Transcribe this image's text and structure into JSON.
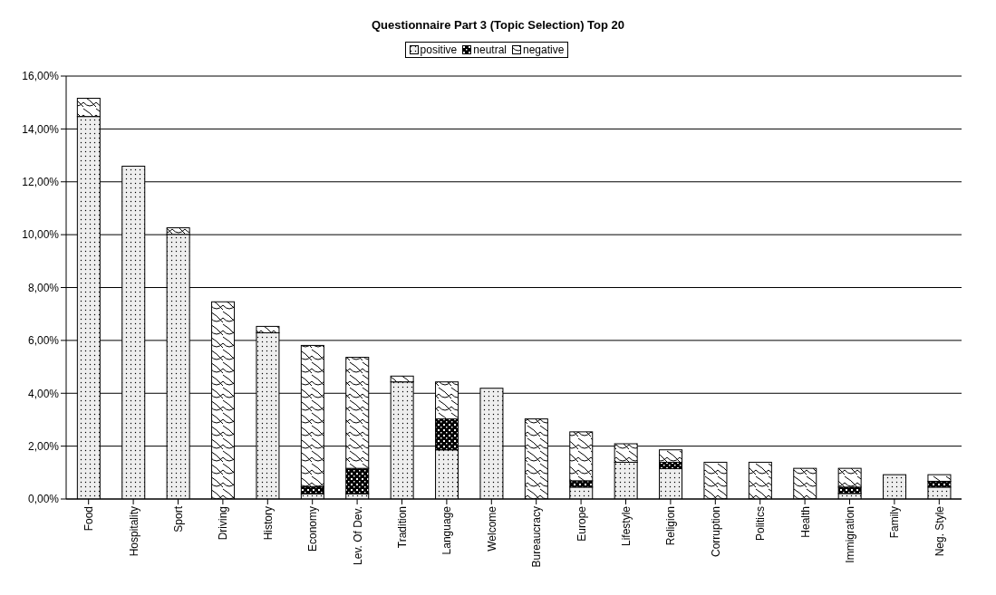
{
  "chart_data": {
    "type": "bar",
    "title": "Questionnaire Part 3 (Topic Selection) Top 20",
    "stacked": true,
    "legend": "top",
    "grid": "y",
    "categories": [
      "Food",
      "Hospitality",
      "Sport",
      "Driving",
      "History",
      "Economy",
      "Lev. Of Dev.",
      "Tradition",
      "Language",
      "Welcome",
      "Bureaucracy",
      "Europe",
      "Lifestyle",
      "Religion",
      "Corruption",
      "Politics",
      "Health",
      "Immigration",
      "Family",
      "Neg. Style"
    ],
    "series": [
      {
        "name": "positive",
        "color": "#eeeeee",
        "values": [
          14.47,
          12.59,
          10.01,
          0,
          6.29,
          0.2,
          0.2,
          4.43,
          1.86,
          4.19,
          0,
          0.45,
          1.39,
          1.15,
          0,
          0,
          0,
          0.21,
          0.92,
          0.45
        ]
      },
      {
        "name": "neutral",
        "color": "#000000",
        "values": [
          0,
          0,
          0,
          0,
          0,
          0.27,
          0.96,
          0,
          1.17,
          0,
          0,
          0.24,
          0,
          0.24,
          0,
          0,
          0,
          0.24,
          0,
          0.22
        ]
      },
      {
        "name": "negative",
        "color": "#ffffff",
        "values": [
          0.69,
          0,
          0.25,
          7.46,
          0.24,
          5.34,
          4.2,
          0.22,
          1.4,
          0,
          3.03,
          1.85,
          0.7,
          0.47,
          1.39,
          1.39,
          1.16,
          0.71,
          0,
          0.25
        ]
      }
    ],
    "ylim": [
      0,
      16
    ],
    "yticks": [
      {
        "value": 0,
        "label": "0,00%"
      },
      {
        "value": 2,
        "label": "2,00%"
      },
      {
        "value": 4,
        "label": "4,00%"
      },
      {
        "value": 6,
        "label": "6,00%"
      },
      {
        "value": 8,
        "label": "8,00%"
      },
      {
        "value": 10,
        "label": "10,00%"
      },
      {
        "value": 12,
        "label": "12,00%"
      },
      {
        "value": 14,
        "label": "14,00%"
      },
      {
        "value": 16,
        "label": "16,00%"
      }
    ]
  }
}
